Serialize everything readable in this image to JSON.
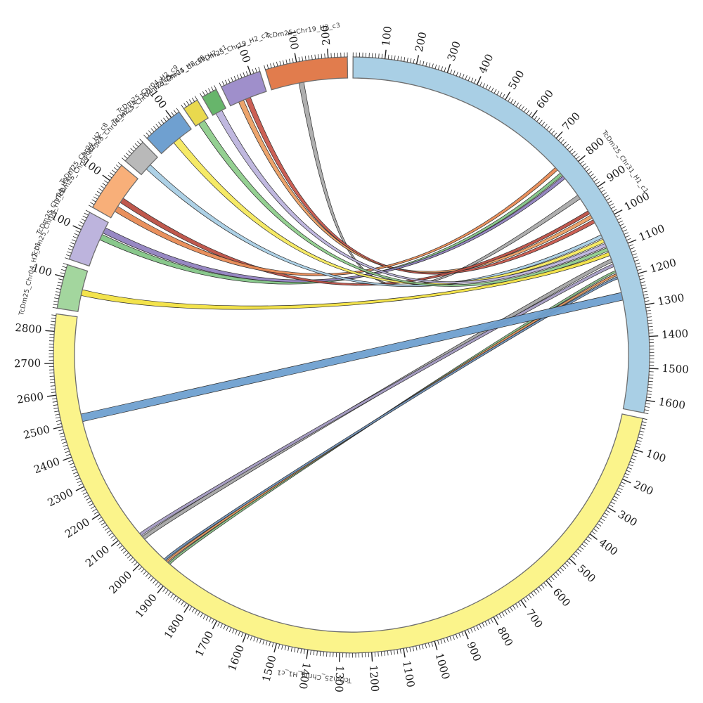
{
  "figure": {
    "kind": "circos-synteny-plot",
    "background": "#ffffff"
  },
  "chart_data": {
    "type": "chord",
    "title": "",
    "gap_degrees": 1.1,
    "start_angle_deg": -89.7,
    "tick_minor_every": 10,
    "tick_major_every": 100,
    "tick_color": "#222222",
    "band_stroke": "#6e6e6e",
    "ribbon_stroke": "#2b2b2b",
    "label_color": "#3a3a3a",
    "tick_label_color": "#1a1a1a",
    "segments": [
      {
        "id": "chr31",
        "name": "TcDm25_Chr31_H1_c1",
        "length": 1640,
        "color": "#A9CFE5",
        "label_frac": 0.54,
        "label_r_off": 52
      },
      {
        "id": "chr04",
        "name": "TcDm25_Chr04_H1_c1",
        "length": 2855,
        "color": "#FBF48B",
        "label_frac": 0.48,
        "label_r_off": 36
      },
      {
        "id": "c1",
        "name": "TcDm25_Chr04_H2_c1",
        "length": 140,
        "color": "#A3D69E",
        "label_frac": 0.5,
        "label_r_off": 46
      },
      {
        "id": "c2",
        "name": "TcDm25_Chr04_H2_c2",
        "length": 160,
        "color": "#BDB4DD",
        "label_frac": 0.5,
        "label_r_off": 46
      },
      {
        "id": "c3",
        "name": "TcDm25_Chr04_H2_c3",
        "length": 160,
        "color": "#F8AF79",
        "label_frac": 0.5,
        "label_r_off": 46
      },
      {
        "id": "c4",
        "name": "TcDm25_Chr04_H2_c4",
        "length": 80,
        "color": "#B9B9B9",
        "label_frac": 0.5,
        "label_r_off": 46
      },
      {
        "id": "c5",
        "name": "TcDm25_Chr04_H2_c5",
        "length": 130,
        "color": "#6FA0D0",
        "label_frac": 0.5,
        "label_r_off": 46
      },
      {
        "id": "c6",
        "name": "TcDm25_Chr04_H2_c6",
        "length": 50,
        "color": "#E9D94E",
        "label_frac": 0.5,
        "label_r_off": 46
      },
      {
        "id": "c7",
        "name": "TcDm25_Chr19_H2_c1",
        "length": 50,
        "color": "#67B56B",
        "label_frac": 0.5,
        "label_r_off": 46
      },
      {
        "id": "c8",
        "name": "TcDm25_Chr19_H2_c2",
        "length": 130,
        "color": "#9F8FCB",
        "label_frac": 0.62,
        "label_r_off": 44
      },
      {
        "id": "c9",
        "name": "TcDm25_Chr19_H2_c3",
        "length": 260,
        "color": "#E17C4D",
        "label_frac": 0.52,
        "label_r_off": 42
      }
    ],
    "extra_labels": [
      {
        "text": "TcDm25_Chr04_H2_c7",
        "deg": 207.5,
        "r_off": 50
      },
      {
        "text": "TcDm25_Chr04_H2_c8",
        "deg": 217.0,
        "r_off": 52
      },
      {
        "text": "TcDm25_Chr04_H2_c9",
        "deg": 232.5,
        "r_off": 52
      }
    ],
    "ribbons": [
      {
        "from": {
          "seg": "c9",
          "s": 95,
          "e": 112
        },
        "to": {
          "seg": "chr31",
          "s": 885,
          "e": 900
        },
        "color": "#ABABAB",
        "k": 0.12
      },
      {
        "from": {
          "seg": "c8",
          "s": 30,
          "e": 48
        },
        "to": {
          "seg": "chr31",
          "s": 965,
          "e": 977
        },
        "color": "#EC9F63",
        "k": 0.28
      },
      {
        "from": {
          "seg": "c8",
          "s": 55,
          "e": 73
        },
        "to": {
          "seg": "chr31",
          "s": 983,
          "e": 995
        },
        "color": "#C8574C",
        "k": 0.28
      },
      {
        "from": {
          "seg": "c2",
          "s": 95,
          "e": 115
        },
        "to": {
          "seg": "chr31",
          "s": 790,
          "e": 801
        },
        "color": "#83C586",
        "k": 0.34
      },
      {
        "from": {
          "seg": "c2",
          "s": 120,
          "e": 140
        },
        "to": {
          "seg": "chr31",
          "s": 804,
          "e": 815
        },
        "color": "#9182C0",
        "k": 0.34
      },
      {
        "from": {
          "seg": "c3",
          "s": 60,
          "e": 78
        },
        "to": {
          "seg": "chr31",
          "s": 948,
          "e": 960
        },
        "color": "#BC4F43",
        "k": 0.3
      },
      {
        "from": {
          "seg": "c3",
          "s": 25,
          "e": 45
        },
        "to": {
          "seg": "chr31",
          "s": 765,
          "e": 777
        },
        "color": "#E88A54",
        "k": 0.32
      },
      {
        "from": {
          "seg": "c4",
          "s": 25,
          "e": 45
        },
        "to": {
          "seg": "chr31",
          "s": 1040,
          "e": 1052
        },
        "color": "#A9CFE5",
        "k": 0.3
      },
      {
        "from": {
          "seg": "c5",
          "s": 55,
          "e": 80
        },
        "to": {
          "seg": "chr31",
          "s": 1056,
          "e": 1068
        },
        "color": "#F5E95E",
        "k": 0.3
      },
      {
        "from": {
          "seg": "c7",
          "s": 12,
          "e": 35
        },
        "to": {
          "seg": "chr31",
          "s": 1072,
          "e": 1084
        },
        "color": "#BDB4DD",
        "k": 0.3
      },
      {
        "from": {
          "seg": "c6",
          "s": 12,
          "e": 35
        },
        "to": {
          "seg": "chr31",
          "s": 1088,
          "e": 1100
        },
        "color": "#8FCD8C",
        "k": 0.3
      },
      {
        "from": {
          "seg": "c1",
          "s": 55,
          "e": 75
        },
        "to": {
          "seg": "chr31",
          "s": 1104,
          "e": 1116
        },
        "color": "#F2E242",
        "k": 0.5
      },
      {
        "from": {
          "seg": "chr31",
          "s": 1128,
          "e": 1140
        },
        "to": {
          "seg": "chr04",
          "s": 2048,
          "e": 2060
        },
        "color": "#A5A5A5",
        "k": 0.88
      },
      {
        "from": {
          "seg": "chr31",
          "s": 1146,
          "e": 1156
        },
        "to": {
          "seg": "chr04",
          "s": 2064,
          "e": 2074
        },
        "color": "#A49BC2",
        "k": 0.88
      },
      {
        "from": {
          "seg": "chr31",
          "s": 1170,
          "e": 1177
        },
        "to": {
          "seg": "chr04",
          "s": 1928,
          "e": 1935
        },
        "color": "#84B983",
        "k": 0.88
      },
      {
        "from": {
          "seg": "chr31",
          "s": 1181,
          "e": 1188
        },
        "to": {
          "seg": "chr04",
          "s": 1938,
          "e": 1945
        },
        "color": "#DE9058",
        "k": 0.88
      },
      {
        "from": {
          "seg": "chr31",
          "s": 1192,
          "e": 1199
        },
        "to": {
          "seg": "chr04",
          "s": 1948,
          "e": 1955
        },
        "color": "#6F94BE",
        "k": 0.88
      },
      {
        "from": {
          "seg": "chr31",
          "s": 1246,
          "e": 1272
        },
        "to": {
          "seg": "chr04",
          "s": 2500,
          "e": 2526
        },
        "color": "#6FA0D0",
        "k": 0.95
      }
    ]
  }
}
